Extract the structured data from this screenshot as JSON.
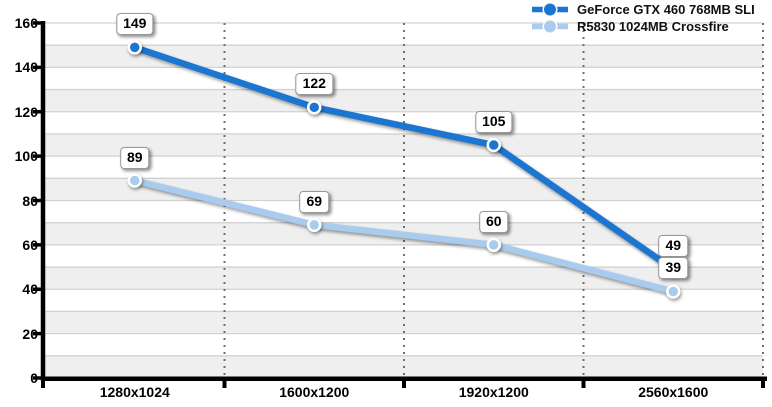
{
  "chart_data": {
    "type": "line",
    "title": "",
    "xlabel": "",
    "ylabel": "",
    "categories": [
      "1280x1024",
      "1600x1200",
      "1920x1200",
      "2560x1600"
    ],
    "series": [
      {
        "name": "GeForce GTX 460 768MB SLI",
        "color": "#1b76d2",
        "values": [
          149,
          122,
          105,
          49
        ]
      },
      {
        "name": "R5830 1024MB Crossfire",
        "color": "#a9cbee",
        "values": [
          89,
          69,
          60,
          39
        ]
      }
    ],
    "ylim": [
      0,
      160
    ],
    "y_tick_step": 20,
    "y_minor_grid_step": 10,
    "y_tick_labels": [
      "0",
      "20",
      "40",
      "60",
      "80",
      "100",
      "120",
      "140",
      "160"
    ],
    "grid": "horizontal minor gridlines with alternating 10-unit shaded bands, dotted vertical category separators",
    "legend_position": "top-right",
    "data_labels": true
  },
  "colors": {
    "series_dark_blue": "#1b76d2",
    "series_light_blue": "#a9cbee",
    "band_fill": "#efefef",
    "gridline": "#d2d2d2",
    "separator_dots": "#6e6e6e",
    "axis": "#000000",
    "label_box_bg": "#ffffff",
    "label_box_border": "#999999",
    "text": "#000000"
  }
}
